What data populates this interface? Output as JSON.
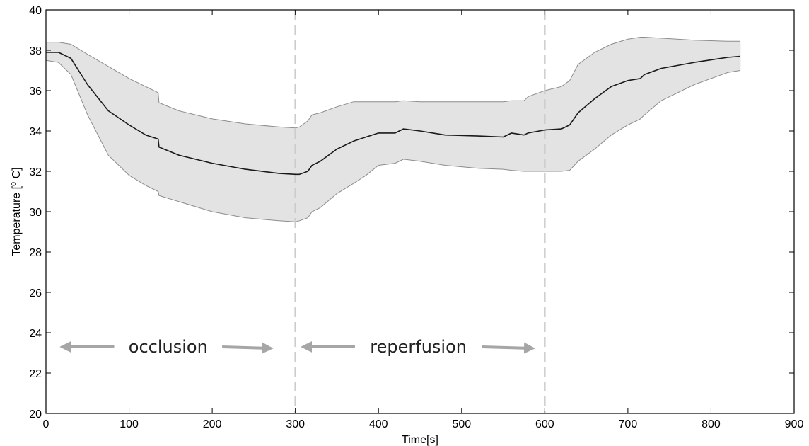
{
  "chart_data": {
    "type": "area",
    "title": "",
    "xlabel": "Time[s]",
    "ylabel_main": "Temperature [",
    "ylabel_sup": "o",
    "ylabel_end": " C]",
    "xlim": [
      0,
      900
    ],
    "ylim": [
      20,
      40
    ],
    "xticks": [
      0,
      100,
      200,
      300,
      400,
      500,
      600,
      700,
      800,
      900
    ],
    "yticks": [
      20,
      22,
      24,
      26,
      28,
      30,
      32,
      34,
      36,
      38,
      40
    ],
    "grid": false,
    "legend": "none",
    "x": [
      0,
      15,
      30,
      50,
      75,
      100,
      120,
      135,
      136,
      160,
      200,
      240,
      280,
      300,
      305,
      315,
      320,
      330,
      350,
      370,
      385,
      400,
      420,
      430,
      450,
      480,
      520,
      550,
      560,
      575,
      580,
      600,
      620,
      630,
      640,
      660,
      680,
      700,
      715,
      720,
      740,
      780,
      820,
      835
    ],
    "series": [
      {
        "role": "mean",
        "values": [
          37.9,
          37.9,
          37.6,
          36.3,
          35.0,
          34.3,
          33.8,
          33.6,
          33.2,
          32.8,
          32.4,
          32.1,
          31.9,
          31.85,
          31.85,
          32.0,
          32.3,
          32.5,
          33.1,
          33.5,
          33.7,
          33.9,
          33.9,
          34.1,
          34.0,
          33.8,
          33.75,
          33.7,
          33.9,
          33.8,
          33.9,
          34.05,
          34.1,
          34.3,
          34.9,
          35.6,
          36.2,
          36.5,
          36.6,
          36.8,
          37.1,
          37.4,
          37.65,
          37.7
        ]
      },
      {
        "role": "upper",
        "values": [
          38.4,
          38.4,
          38.3,
          37.8,
          37.2,
          36.6,
          36.2,
          35.9,
          35.4,
          35.0,
          34.6,
          34.35,
          34.2,
          34.15,
          34.2,
          34.5,
          34.8,
          34.9,
          35.2,
          35.45,
          35.45,
          35.45,
          35.45,
          35.5,
          35.45,
          35.45,
          35.45,
          35.45,
          35.5,
          35.5,
          35.7,
          36.0,
          36.2,
          36.5,
          37.3,
          37.9,
          38.3,
          38.55,
          38.65,
          38.65,
          38.6,
          38.5,
          38.45,
          38.45
        ]
      },
      {
        "role": "lower",
        "values": [
          37.5,
          37.4,
          36.8,
          34.8,
          32.8,
          31.8,
          31.3,
          31.0,
          30.8,
          30.5,
          30.0,
          29.7,
          29.55,
          29.5,
          29.55,
          29.7,
          30.0,
          30.2,
          30.9,
          31.4,
          31.8,
          32.3,
          32.4,
          32.6,
          32.5,
          32.3,
          32.15,
          32.1,
          32.05,
          32.0,
          32.0,
          32.0,
          32.0,
          32.05,
          32.5,
          33.1,
          33.8,
          34.3,
          34.6,
          34.8,
          35.5,
          36.3,
          36.9,
          37.0
        ]
      }
    ],
    "vlines": [
      300,
      600
    ],
    "annotations": [
      {
        "text": "occlusion",
        "x_from": 15,
        "x_to": 275,
        "y": 23.3,
        "text_x": 147
      },
      {
        "text": "reperfusion",
        "x_from": 305,
        "x_to": 590,
        "y": 23.3,
        "text_x": 448
      }
    ],
    "colors": {
      "band": "#e3e3e3",
      "band_edge": "#8c8c8c",
      "mean": "#1a1a1a",
      "vline": "#cccccc",
      "arrow": "#a6a6a6",
      "axis": "#000000"
    }
  }
}
